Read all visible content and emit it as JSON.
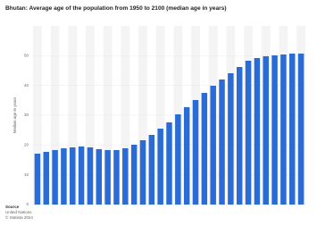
{
  "chart_data": {
    "type": "bar",
    "title": "Bhutan: Average age of the population from 1950 to 2100 (median age in years)",
    "y_label": "Median age in years",
    "source_label": "Source",
    "source": "United Nations",
    "copyright": "© Statista 2024",
    "categories": [
      null,
      null,
      null,
      null,
      null,
      null,
      null,
      null,
      null,
      null,
      null,
      null,
      null,
      null,
      null,
      null,
      null,
      null,
      null,
      null,
      null,
      null,
      null,
      null,
      null,
      null,
      null,
      null,
      null,
      null,
      null
    ],
    "values": [
      17.1,
      17.7,
      18.3,
      18.9,
      19.2,
      19.5,
      19.2,
      18.6,
      18.3,
      18.3,
      18.9,
      20.1,
      21.6,
      23.4,
      25.5,
      27.6,
      30.3,
      32.7,
      35.1,
      37.5,
      39.9,
      42.0,
      44.1,
      46.2,
      48.3,
      49.2,
      49.8,
      50.1,
      50.4,
      50.7,
      50.7
    ],
    "color": "#2b6bd6",
    "ylim": [
      0,
      60
    ],
    "yticks": [
      0,
      10,
      20,
      30,
      40,
      50
    ],
    "grid": true
  }
}
